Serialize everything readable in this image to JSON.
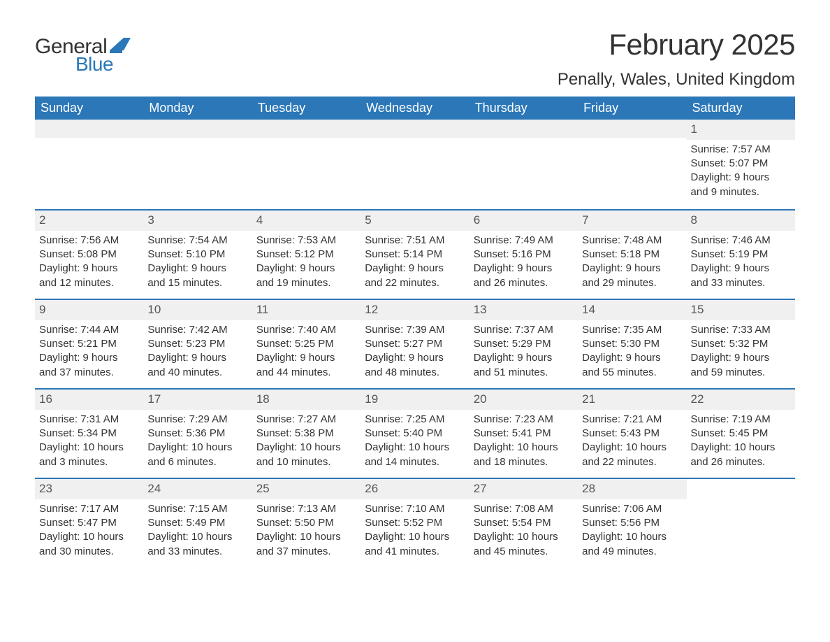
{
  "logo": {
    "text_general": "General",
    "text_blue": "Blue",
    "shape_color": "#2b77b8"
  },
  "header": {
    "month_title": "February 2025",
    "location": "Penally, Wales, United Kingdom"
  },
  "styling": {
    "header_bg": "#2b77b8",
    "header_text": "#ffffff",
    "day_bar_bg": "#f0f0f0",
    "week_border": "#2b77b8",
    "body_text": "#333333",
    "title_fontsize": 42,
    "location_fontsize": 24,
    "weekday_fontsize": 18,
    "daynum_fontsize": 17,
    "content_fontsize": 15
  },
  "weekdays": [
    "Sunday",
    "Monday",
    "Tuesday",
    "Wednesday",
    "Thursday",
    "Friday",
    "Saturday"
  ],
  "weeks": [
    [
      null,
      null,
      null,
      null,
      null,
      null,
      {
        "num": "1",
        "sunrise": "Sunrise: 7:57 AM",
        "sunset": "Sunset: 5:07 PM",
        "day1": "Daylight: 9 hours",
        "day2": "and 9 minutes."
      }
    ],
    [
      {
        "num": "2",
        "sunrise": "Sunrise: 7:56 AM",
        "sunset": "Sunset: 5:08 PM",
        "day1": "Daylight: 9 hours",
        "day2": "and 12 minutes."
      },
      {
        "num": "3",
        "sunrise": "Sunrise: 7:54 AM",
        "sunset": "Sunset: 5:10 PM",
        "day1": "Daylight: 9 hours",
        "day2": "and 15 minutes."
      },
      {
        "num": "4",
        "sunrise": "Sunrise: 7:53 AM",
        "sunset": "Sunset: 5:12 PM",
        "day1": "Daylight: 9 hours",
        "day2": "and 19 minutes."
      },
      {
        "num": "5",
        "sunrise": "Sunrise: 7:51 AM",
        "sunset": "Sunset: 5:14 PM",
        "day1": "Daylight: 9 hours",
        "day2": "and 22 minutes."
      },
      {
        "num": "6",
        "sunrise": "Sunrise: 7:49 AM",
        "sunset": "Sunset: 5:16 PM",
        "day1": "Daylight: 9 hours",
        "day2": "and 26 minutes."
      },
      {
        "num": "7",
        "sunrise": "Sunrise: 7:48 AM",
        "sunset": "Sunset: 5:18 PM",
        "day1": "Daylight: 9 hours",
        "day2": "and 29 minutes."
      },
      {
        "num": "8",
        "sunrise": "Sunrise: 7:46 AM",
        "sunset": "Sunset: 5:19 PM",
        "day1": "Daylight: 9 hours",
        "day2": "and 33 minutes."
      }
    ],
    [
      {
        "num": "9",
        "sunrise": "Sunrise: 7:44 AM",
        "sunset": "Sunset: 5:21 PM",
        "day1": "Daylight: 9 hours",
        "day2": "and 37 minutes."
      },
      {
        "num": "10",
        "sunrise": "Sunrise: 7:42 AM",
        "sunset": "Sunset: 5:23 PM",
        "day1": "Daylight: 9 hours",
        "day2": "and 40 minutes."
      },
      {
        "num": "11",
        "sunrise": "Sunrise: 7:40 AM",
        "sunset": "Sunset: 5:25 PM",
        "day1": "Daylight: 9 hours",
        "day2": "and 44 minutes."
      },
      {
        "num": "12",
        "sunrise": "Sunrise: 7:39 AM",
        "sunset": "Sunset: 5:27 PM",
        "day1": "Daylight: 9 hours",
        "day2": "and 48 minutes."
      },
      {
        "num": "13",
        "sunrise": "Sunrise: 7:37 AM",
        "sunset": "Sunset: 5:29 PM",
        "day1": "Daylight: 9 hours",
        "day2": "and 51 minutes."
      },
      {
        "num": "14",
        "sunrise": "Sunrise: 7:35 AM",
        "sunset": "Sunset: 5:30 PM",
        "day1": "Daylight: 9 hours",
        "day2": "and 55 minutes."
      },
      {
        "num": "15",
        "sunrise": "Sunrise: 7:33 AM",
        "sunset": "Sunset: 5:32 PM",
        "day1": "Daylight: 9 hours",
        "day2": "and 59 minutes."
      }
    ],
    [
      {
        "num": "16",
        "sunrise": "Sunrise: 7:31 AM",
        "sunset": "Sunset: 5:34 PM",
        "day1": "Daylight: 10 hours",
        "day2": "and 3 minutes."
      },
      {
        "num": "17",
        "sunrise": "Sunrise: 7:29 AM",
        "sunset": "Sunset: 5:36 PM",
        "day1": "Daylight: 10 hours",
        "day2": "and 6 minutes."
      },
      {
        "num": "18",
        "sunrise": "Sunrise: 7:27 AM",
        "sunset": "Sunset: 5:38 PM",
        "day1": "Daylight: 10 hours",
        "day2": "and 10 minutes."
      },
      {
        "num": "19",
        "sunrise": "Sunrise: 7:25 AM",
        "sunset": "Sunset: 5:40 PM",
        "day1": "Daylight: 10 hours",
        "day2": "and 14 minutes."
      },
      {
        "num": "20",
        "sunrise": "Sunrise: 7:23 AM",
        "sunset": "Sunset: 5:41 PM",
        "day1": "Daylight: 10 hours",
        "day2": "and 18 minutes."
      },
      {
        "num": "21",
        "sunrise": "Sunrise: 7:21 AM",
        "sunset": "Sunset: 5:43 PM",
        "day1": "Daylight: 10 hours",
        "day2": "and 22 minutes."
      },
      {
        "num": "22",
        "sunrise": "Sunrise: 7:19 AM",
        "sunset": "Sunset: 5:45 PM",
        "day1": "Daylight: 10 hours",
        "day2": "and 26 minutes."
      }
    ],
    [
      {
        "num": "23",
        "sunrise": "Sunrise: 7:17 AM",
        "sunset": "Sunset: 5:47 PM",
        "day1": "Daylight: 10 hours",
        "day2": "and 30 minutes."
      },
      {
        "num": "24",
        "sunrise": "Sunrise: 7:15 AM",
        "sunset": "Sunset: 5:49 PM",
        "day1": "Daylight: 10 hours",
        "day2": "and 33 minutes."
      },
      {
        "num": "25",
        "sunrise": "Sunrise: 7:13 AM",
        "sunset": "Sunset: 5:50 PM",
        "day1": "Daylight: 10 hours",
        "day2": "and 37 minutes."
      },
      {
        "num": "26",
        "sunrise": "Sunrise: 7:10 AM",
        "sunset": "Sunset: 5:52 PM",
        "day1": "Daylight: 10 hours",
        "day2": "and 41 minutes."
      },
      {
        "num": "27",
        "sunrise": "Sunrise: 7:08 AM",
        "sunset": "Sunset: 5:54 PM",
        "day1": "Daylight: 10 hours",
        "day2": "and 45 minutes."
      },
      {
        "num": "28",
        "sunrise": "Sunrise: 7:06 AM",
        "sunset": "Sunset: 5:56 PM",
        "day1": "Daylight: 10 hours",
        "day2": "and 49 minutes."
      },
      null
    ]
  ]
}
